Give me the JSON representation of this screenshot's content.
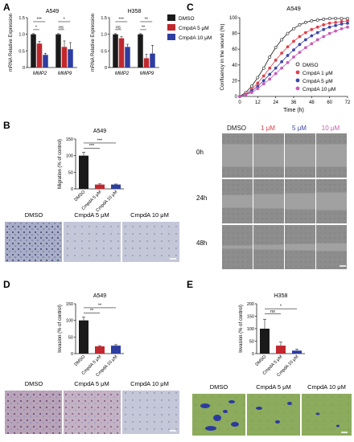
{
  "panels": {
    "A": {
      "letter": "A",
      "left": {
        "title": "A549",
        "ylabel": "mRNA Relative Expression"
      },
      "right": {
        "title": "H358",
        "ylabel": "mRNA Relative Expression"
      },
      "legend": [
        "DMSO",
        "CmpdA 5 μM",
        "CmpdA 10 μM"
      ]
    },
    "B": {
      "letter": "B",
      "title": "A549",
      "ylabel": "Migration (% of control)",
      "micro_labels": [
        "DMSO",
        "CmpdA 5 μM",
        "CmpdA 10 μM"
      ]
    },
    "C": {
      "letter": "C",
      "title": "A549",
      "ylabel": "Confluency in the wound (%)",
      "xlabel": "Time (h)",
      "legend": [
        "DMSO",
        "CmpdA 1 μM",
        "CmpdA 5 μM",
        "CmpdA 10 μM"
      ],
      "grid_cols": [
        "DMSO",
        "1 μM",
        "5 μM",
        "10 μM"
      ],
      "grid_rows": [
        "0h",
        "24h",
        "48h"
      ]
    },
    "D": {
      "letter": "D",
      "title": "A549",
      "ylabel": "Invasion (% of control)",
      "micro_labels": [
        "DMSO",
        "CmpdA 5 μM",
        "CmpdA 10 μM"
      ]
    },
    "E": {
      "letter": "E",
      "title": "H358",
      "ylabel": "Invasion (% of control)",
      "micro_labels": [
        "DMSO",
        "CmpdA 5 μM",
        "CmpdA 10 μM"
      ]
    }
  },
  "colors": {
    "dmso": "#1a1a1a",
    "c1": "#e0404a",
    "c5": "#c0282e",
    "c5blue": "#3a46a8",
    "c10": "#2d3da0",
    "c10pink": "#c85ab8"
  },
  "chart_data": [
    {
      "id": "A-A549",
      "type": "bar",
      "title": "A549",
      "ylabel": "mRNA Relative Expression",
      "categories": [
        "MMP2",
        "MMP9"
      ],
      "ylim": [
        0,
        1.5
      ],
      "yticks": [
        0,
        0.5,
        1.0,
        1.5
      ],
      "series": [
        {
          "name": "DMSO",
          "values": [
            1.0,
            1.0
          ],
          "err": [
            0.02,
            0.02
          ]
        },
        {
          "name": "CmpdA 5 μM",
          "values": [
            0.72,
            0.62
          ],
          "err": [
            0.07,
            0.18
          ]
        },
        {
          "name": "CmpdA 10 μM",
          "values": [
            0.38,
            0.55
          ],
          "err": [
            0.05,
            0.2
          ]
        }
      ],
      "sig": [
        {
          "cat": 0,
          "from": 0,
          "to": 2,
          "label": "***",
          "level": 1.38
        },
        {
          "cat": 0,
          "from": 0,
          "to": 1,
          "label": "*",
          "level": 1.14
        },
        {
          "cat": 1,
          "from": 0,
          "to": 2,
          "label": "*",
          "level": 1.38
        },
        {
          "cat": 1,
          "from": 0,
          "to": 1,
          "label": "ns",
          "level": 1.14
        }
      ]
    },
    {
      "id": "A-H358",
      "type": "bar",
      "title": "H358",
      "ylabel": "mRNA Relative Expression",
      "categories": [
        "MMP2",
        "MMP9"
      ],
      "ylim": [
        0,
        1.5
      ],
      "yticks": [
        0,
        0.5,
        1.0,
        1.5
      ],
      "series": [
        {
          "name": "DMSO",
          "values": [
            1.0,
            1.0
          ],
          "err": [
            0.02,
            0.02
          ]
        },
        {
          "name": "CmpdA 5 μM",
          "values": [
            0.88,
            0.28
          ],
          "err": [
            0.05,
            0.12
          ]
        },
        {
          "name": "CmpdA 10 μM",
          "values": [
            0.62,
            0.42
          ],
          "err": [
            0.08,
            0.25
          ]
        }
      ],
      "sig": [
        {
          "cat": 0,
          "from": 0,
          "to": 2,
          "label": "***",
          "level": 1.38
        },
        {
          "cat": 0,
          "from": 0,
          "to": 1,
          "label": "ns",
          "level": 1.14
        },
        {
          "cat": 1,
          "from": 0,
          "to": 2,
          "label": "**",
          "level": 1.38
        },
        {
          "cat": 1,
          "from": 0,
          "to": 1,
          "label": "**",
          "level": 1.14
        }
      ]
    },
    {
      "id": "C",
      "type": "line",
      "title": "A549",
      "xlabel": "Time (h)",
      "ylabel": "Confluency in the wound (%)",
      "x": [
        0,
        4,
        8,
        12,
        16,
        20,
        24,
        28,
        32,
        36,
        40,
        44,
        48,
        52,
        56,
        60,
        64,
        68,
        72
      ],
      "xticks": [
        0,
        12,
        24,
        36,
        48,
        60,
        72
      ],
      "yticks": [
        0,
        20,
        40,
        60,
        80,
        100
      ],
      "xlim": [
        0,
        72
      ],
      "ylim": [
        0,
        100
      ],
      "series": [
        {
          "name": "DMSO",
          "values": [
            0,
            5,
            13,
            24,
            36,
            50,
            62,
            72,
            80,
            86,
            91,
            94,
            96,
            97,
            98,
            99,
            99,
            99,
            99
          ]
        },
        {
          "name": "CmpdA 1 μM",
          "values": [
            0,
            3,
            9,
            17,
            26,
            36,
            46,
            55,
            63,
            70,
            76,
            81,
            85,
            88,
            91,
            93,
            94,
            95,
            96
          ]
        },
        {
          "name": "CmpdA 5 μM",
          "values": [
            0,
            2,
            7,
            13,
            20,
            28,
            36,
            44,
            52,
            59,
            66,
            72,
            77,
            81,
            85,
            88,
            90,
            92,
            93
          ]
        },
        {
          "name": "CmpdA 10 μM",
          "values": [
            0,
            2,
            5,
            10,
            16,
            22,
            29,
            36,
            43,
            50,
            56,
            62,
            67,
            72,
            76,
            80,
            83,
            86,
            88
          ]
        }
      ]
    },
    {
      "id": "B",
      "type": "bar",
      "title": "A549",
      "ylabel": "Migration (% of control)",
      "categories": [
        "DMSO",
        "CmpdA 5 μM",
        "CmpdA 10 μM"
      ],
      "ylim": [
        0,
        150
      ],
      "yticks": [
        0,
        50,
        100,
        150
      ],
      "values": [
        100,
        13,
        13
      ],
      "err": [
        10,
        2,
        1.5
      ],
      "sig": [
        {
          "from": 0,
          "to": 1,
          "label": "***",
          "level": 122
        },
        {
          "from": 0,
          "to": 2,
          "label": "***",
          "level": 138
        }
      ]
    },
    {
      "id": "D",
      "type": "bar",
      "title": "A549",
      "ylabel": "Invasion (% of control)",
      "categories": [
        "DMSO",
        "CmpdA 5 μM",
        "CmpdA 10 μM"
      ],
      "ylim": [
        0,
        150
      ],
      "yticks": [
        0,
        50,
        100,
        150
      ],
      "values": [
        100,
        22,
        24
      ],
      "err": [
        10,
        2,
        3
      ],
      "sig": [
        {
          "from": 0,
          "to": 1,
          "label": "**",
          "level": 122
        },
        {
          "from": 0,
          "to": 2,
          "label": "**",
          "level": 138
        }
      ]
    },
    {
      "id": "E",
      "type": "bar",
      "title": "H358",
      "ylabel": "Invasion (% of control)",
      "categories": [
        "DMSO",
        "CmpdA 5 μM",
        "CmpdA 10 μM"
      ],
      "ylim": [
        0,
        200
      ],
      "yticks": [
        0,
        50,
        100,
        150,
        200
      ],
      "values": [
        100,
        32,
        12
      ],
      "err": [
        38,
        14,
        6
      ],
      "sig": [
        {
          "from": 0,
          "to": 1,
          "label": "ns",
          "level": 160
        },
        {
          "from": 0,
          "to": 2,
          "label": "*",
          "level": 180
        }
      ]
    }
  ]
}
